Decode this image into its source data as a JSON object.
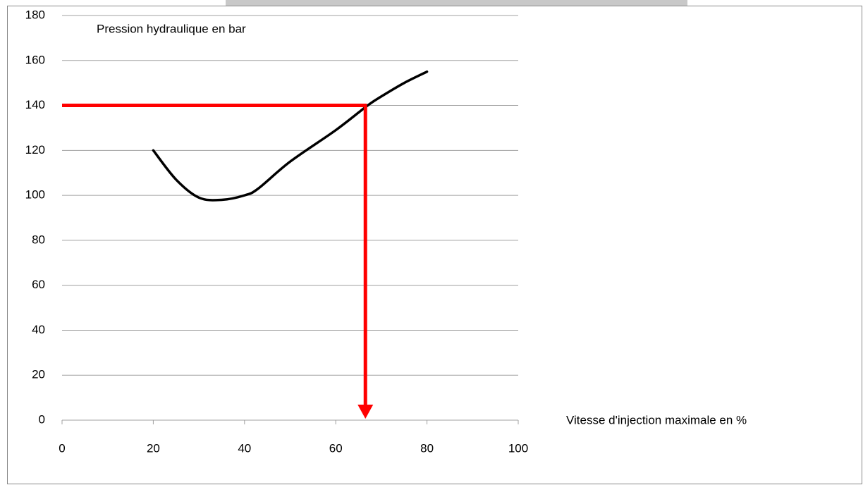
{
  "chart_data": {
    "type": "line",
    "ylabel": "Pression hydraulique  en bar",
    "xlabel": "Vitesse d'injection maximale en %",
    "x": [
      20,
      25,
      30,
      35,
      40,
      43,
      50,
      60,
      67,
      70,
      75,
      80
    ],
    "values": [
      120,
      107,
      99,
      98,
      100,
      103,
      115,
      129,
      140,
      144,
      150,
      155
    ],
    "color": "#000000",
    "xlim": [
      0,
      100
    ],
    "xticks": [
      0,
      20,
      40,
      60,
      80,
      100
    ],
    "ylim": [
      0,
      180
    ],
    "yticks": [
      0,
      20,
      40,
      60,
      80,
      100,
      120,
      140,
      160,
      180
    ],
    "grid": true,
    "guide": {
      "x": 66.5,
      "y": 140,
      "color": "#ff0000"
    }
  }
}
